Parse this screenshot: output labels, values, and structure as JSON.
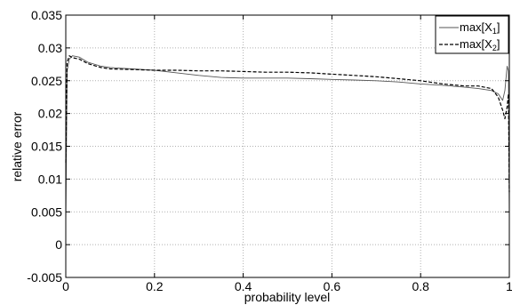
{
  "chart_data": {
    "type": "line",
    "title": "",
    "xlabel": "probability level",
    "ylabel": "relative error",
    "xlim": [
      0,
      1
    ],
    "ylim": [
      -0.005,
      0.035
    ],
    "xticks": [
      0,
      0.2,
      0.4,
      0.6,
      0.8,
      1
    ],
    "xtick_labels": [
      "0",
      "0.2",
      "0.4",
      "0.6",
      "0.8",
      "1"
    ],
    "yticks": [
      -0.005,
      0,
      0.005,
      0.01,
      0.015,
      0.02,
      0.025,
      0.03,
      0.035
    ],
    "ytick_labels": [
      "-0.005",
      "0",
      "0.005",
      "0.01",
      "0.015",
      "0.02",
      "0.025",
      "0.03",
      "0.035"
    ],
    "grid": true,
    "legend_position": "top-right",
    "series": [
      {
        "name": "max[X1]",
        "legend_text": "max[X",
        "legend_sub": "1",
        "legend_close": "]",
        "line_style": "solid",
        "color": "#555555",
        "x": [
          0,
          0.003,
          0.008,
          0.015,
          0.03,
          0.05,
          0.08,
          0.1,
          0.15,
          0.2,
          0.25,
          0.3,
          0.35,
          0.4,
          0.45,
          0.5,
          0.55,
          0.6,
          0.65,
          0.7,
          0.75,
          0.8,
          0.85,
          0.9,
          0.93,
          0.96,
          0.975,
          0.985,
          0.99,
          0.995,
          0.998,
          1.0
        ],
        "y": [
          0.003,
          0.0265,
          0.0283,
          0.0288,
          0.0286,
          0.0278,
          0.0272,
          0.027,
          0.0268,
          0.0266,
          0.0262,
          0.0258,
          0.0255,
          0.0254,
          0.0254,
          0.0254,
          0.0253,
          0.0252,
          0.0251,
          0.025,
          0.0248,
          0.0245,
          0.0243,
          0.024,
          0.0238,
          0.0235,
          0.023,
          0.022,
          0.0235,
          0.0272,
          0.0265,
          0.004
        ]
      },
      {
        "name": "max[X2]",
        "legend_text": "max[X",
        "legend_sub": "2",
        "legend_close": "]",
        "line_style": "dashed",
        "color": "#000000",
        "x": [
          0,
          0.003,
          0.008,
          0.015,
          0.03,
          0.05,
          0.08,
          0.1,
          0.15,
          0.2,
          0.25,
          0.3,
          0.35,
          0.4,
          0.45,
          0.5,
          0.55,
          0.6,
          0.65,
          0.7,
          0.75,
          0.8,
          0.85,
          0.9,
          0.93,
          0.96,
          0.975,
          0.985,
          0.99,
          0.995,
          0.998,
          1.0
        ],
        "y": [
          0.0125,
          0.0278,
          0.0288,
          0.0285,
          0.0283,
          0.0276,
          0.027,
          0.0268,
          0.0267,
          0.0266,
          0.0266,
          0.0265,
          0.0265,
          0.0264,
          0.0263,
          0.0263,
          0.0262,
          0.026,
          0.0258,
          0.0256,
          0.0253,
          0.025,
          0.0245,
          0.0242,
          0.0242,
          0.0238,
          0.0225,
          0.0205,
          0.0192,
          0.021,
          0.023,
          0.008
        ]
      }
    ]
  }
}
